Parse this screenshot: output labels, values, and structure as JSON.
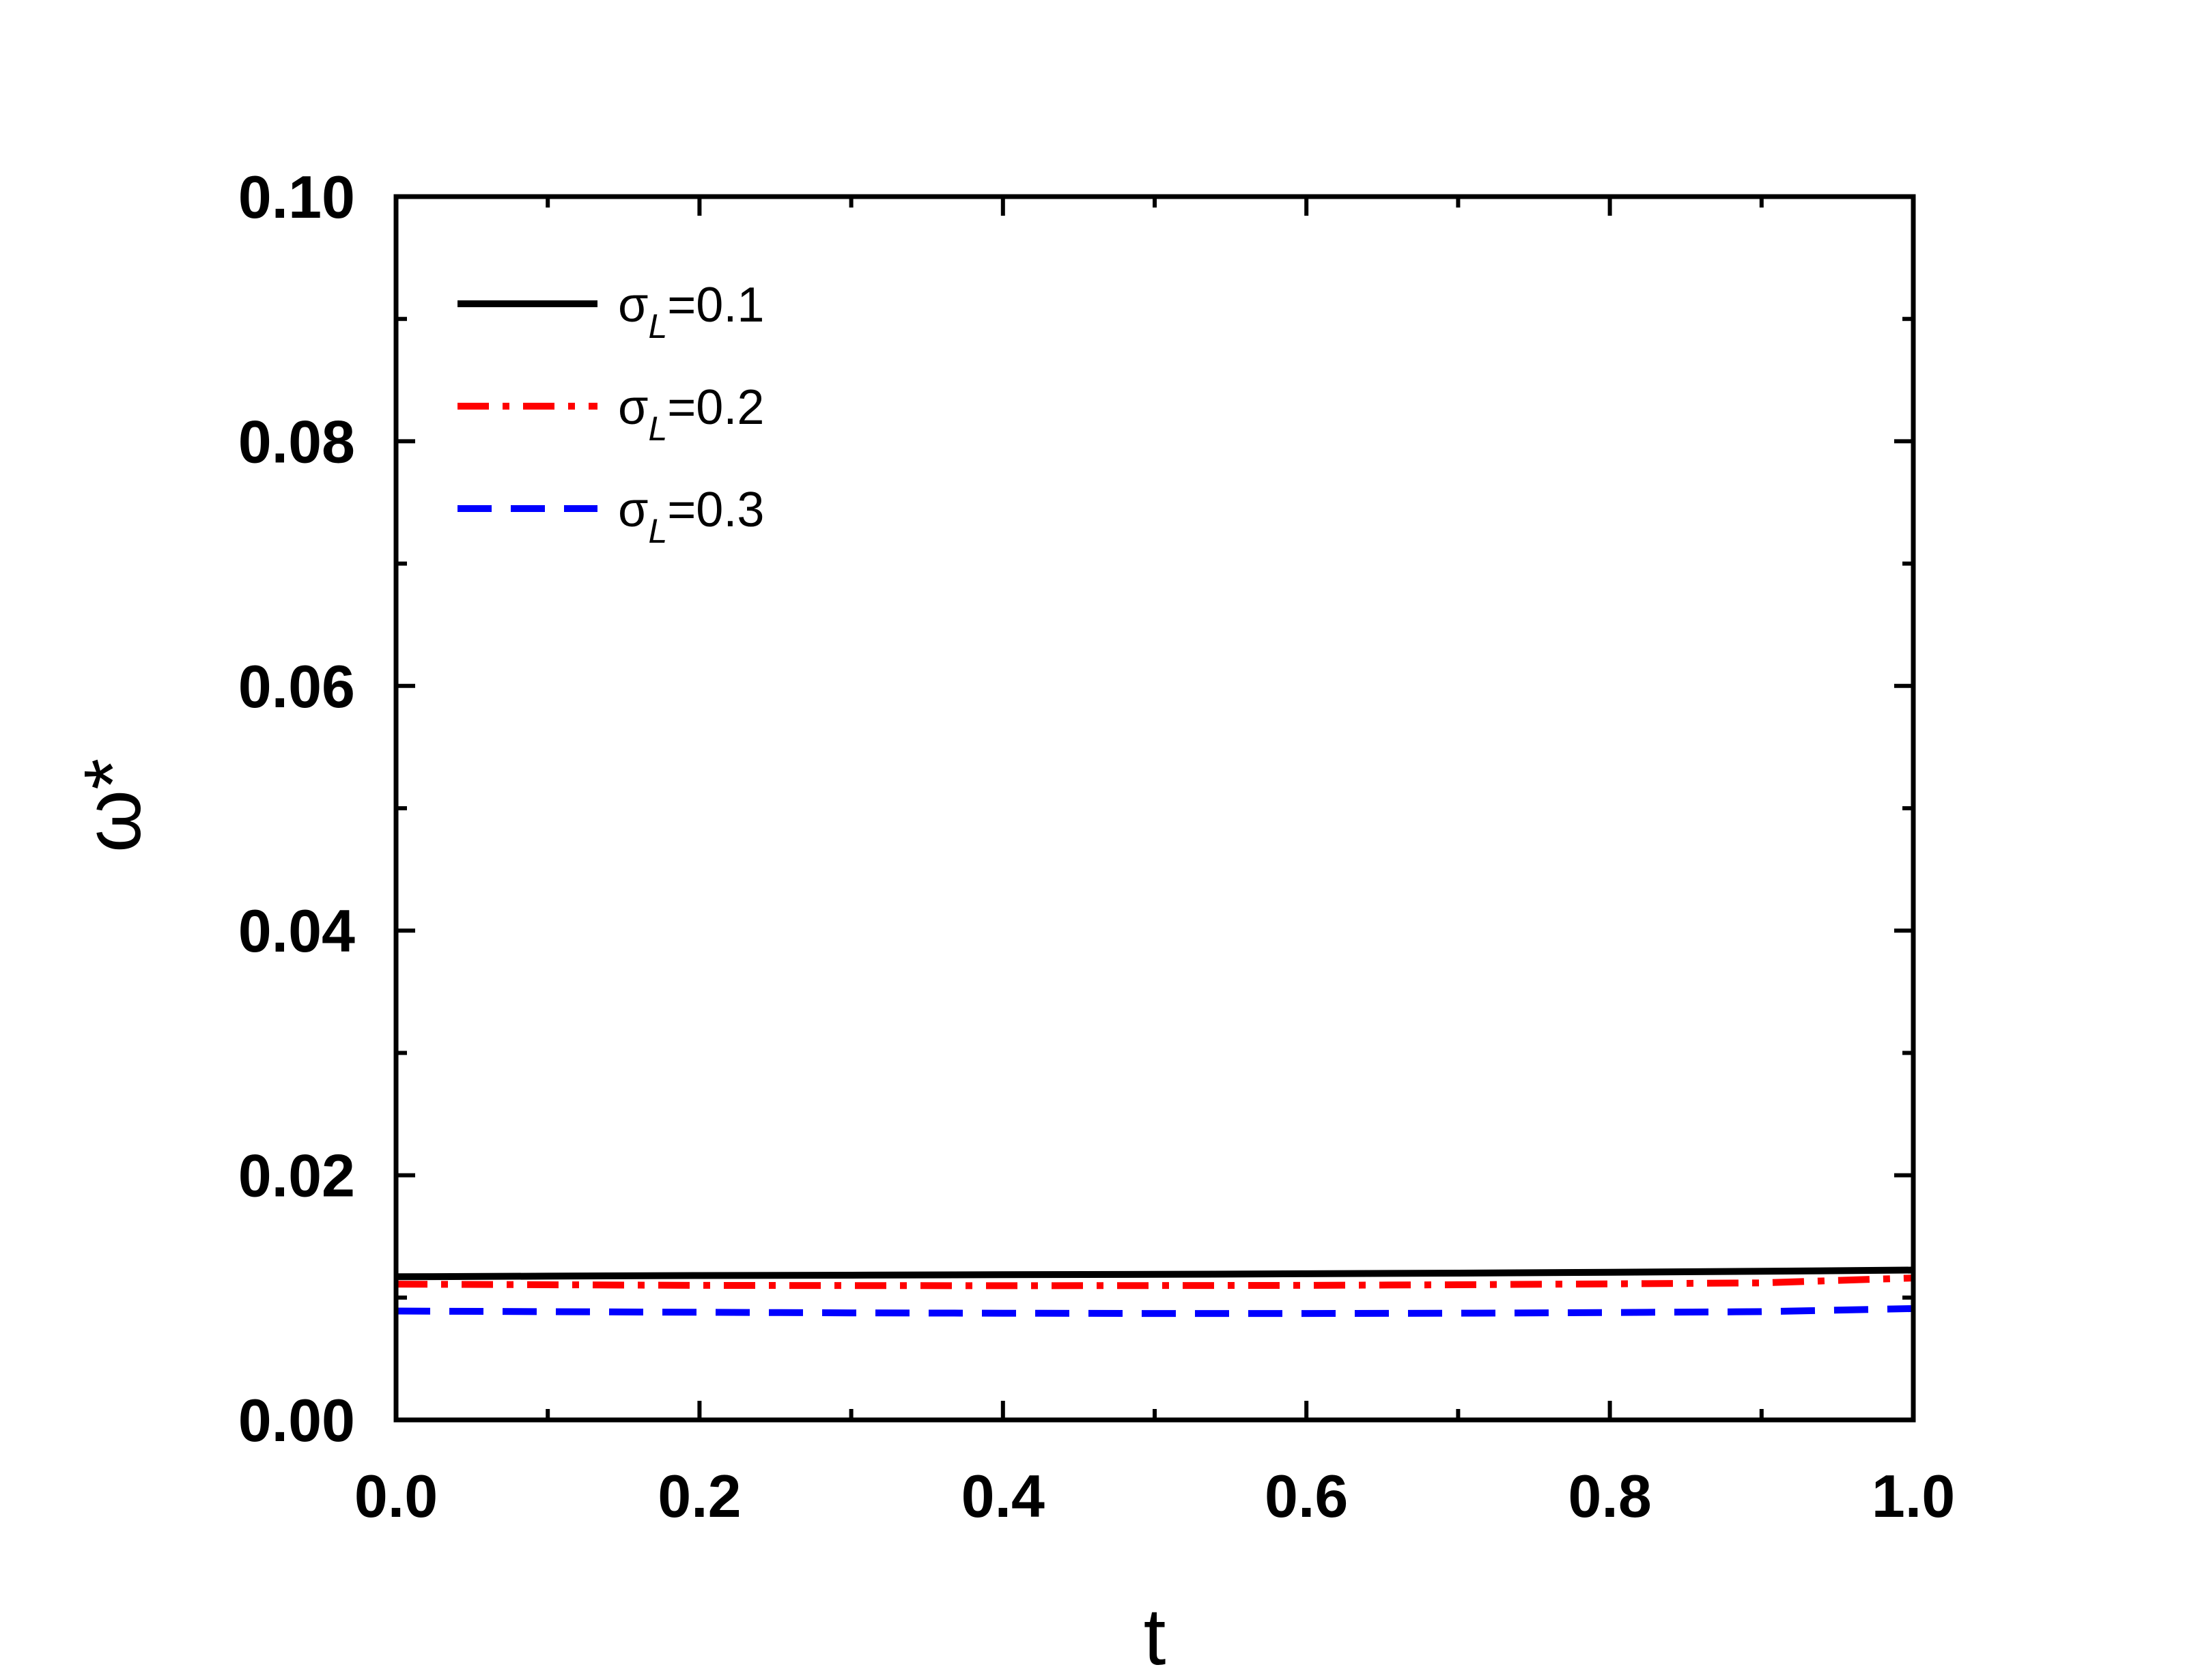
{
  "chart_data": {
    "type": "line",
    "title": "",
    "xlabel": "t",
    "ylabel": "ω*",
    "xlim": [
      0.0,
      1.0
    ],
    "ylim": [
      0.0,
      0.1
    ],
    "xticks": [
      "0.0",
      "0.2",
      "0.4",
      "0.6",
      "0.8",
      "1.0"
    ],
    "yticks": [
      "0.00",
      "0.02",
      "0.04",
      "0.06",
      "0.08",
      "0.10"
    ],
    "grid": false,
    "legend_position": "top-left",
    "series": [
      {
        "name": "σL=0.1",
        "label_symbol": "σ",
        "label_sub": "L",
        "label_value": "=0.1",
        "color": "#000000",
        "style": "solid",
        "x": [
          0.0,
          0.1,
          0.2,
          0.3,
          0.4,
          0.5,
          0.6,
          0.7,
          0.8,
          0.9,
          1.0
        ],
        "y": [
          0.0117,
          0.01175,
          0.0118,
          0.01183,
          0.01187,
          0.0119,
          0.01195,
          0.012,
          0.01207,
          0.01215,
          0.01225
        ]
      },
      {
        "name": "σL=0.2",
        "label_symbol": "σ",
        "label_sub": "L",
        "label_value": "=0.2",
        "color": "#ff0000",
        "style": "dashdot",
        "x": [
          0.0,
          0.1,
          0.2,
          0.3,
          0.4,
          0.5,
          0.6,
          0.7,
          0.8,
          0.9,
          1.0
        ],
        "y": [
          0.0111,
          0.01105,
          0.011,
          0.01098,
          0.01097,
          0.01098,
          0.011,
          0.01105,
          0.01112,
          0.0112,
          0.0116
        ]
      },
      {
        "name": "σL=0.3",
        "label_symbol": "σ",
        "label_sub": "L",
        "label_value": "=0.3",
        "color": "#0000ff",
        "style": "dashed",
        "x": [
          0.0,
          0.1,
          0.2,
          0.3,
          0.4,
          0.5,
          0.6,
          0.7,
          0.8,
          0.9,
          1.0
        ],
        "y": [
          0.0089,
          0.00885,
          0.0088,
          0.00875,
          0.00872,
          0.0087,
          0.0087,
          0.00872,
          0.00878,
          0.00885,
          0.0091
        ]
      }
    ]
  }
}
